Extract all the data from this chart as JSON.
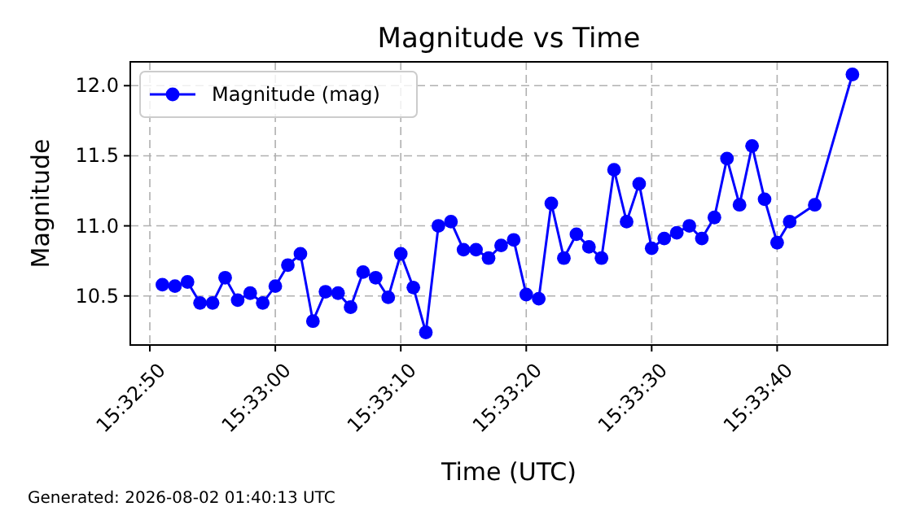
{
  "chart_data": {
    "type": "line",
    "title": "Magnitude vs Time",
    "xlabel": "Time (UTC)",
    "ylabel": "Magnitude",
    "annotations": [
      "Generated: 2026-08-02 01:40:13 UTC"
    ],
    "x": [
      15.5475,
      15.547778,
      15.548056,
      15.548333,
      15.548611,
      15.548889,
      15.549167,
      15.549444,
      15.549722,
      15.55,
      15.550278,
      15.550556,
      15.550833,
      15.551111,
      15.551389,
      15.551667,
      15.551944,
      15.552222,
      15.5525,
      15.552778,
      15.553056,
      15.553333,
      15.553611,
      15.553889,
      15.554167,
      15.554444,
      15.554722,
      15.555,
      15.555278,
      15.555556,
      15.555833,
      15.556111,
      15.556389,
      15.556667,
      15.556944,
      15.557222,
      15.5575,
      15.557778,
      15.558056,
      15.558333,
      15.558611,
      15.558889,
      15.559167,
      15.559444,
      15.559722,
      15.56,
      15.560278,
      15.560556,
      15.560833,
      15.561111,
      15.561389,
      15.561944,
      15.562778
    ],
    "series": [
      {
        "name": "Magnitude (mag)",
        "color": "#0000ff",
        "values": [
          10.58,
          10.57,
          10.6,
          10.45,
          10.45,
          10.63,
          10.47,
          10.52,
          10.45,
          10.57,
          10.72,
          10.8,
          10.32,
          10.53,
          10.52,
          10.42,
          10.67,
          10.63,
          10.49,
          10.8,
          10.56,
          10.24,
          11.0,
          11.03,
          10.83,
          10.83,
          10.77,
          10.86,
          10.9,
          10.51,
          10.48,
          11.16,
          10.77,
          10.94,
          10.85,
          10.77,
          11.4,
          11.03,
          11.3,
          10.84,
          10.91,
          10.95,
          11.0,
          10.91,
          11.06,
          11.48,
          11.15,
          11.57,
          11.19,
          10.88,
          11.03,
          11.15,
          12.08
        ]
      }
    ],
    "xlim": [
      15.546789,
      15.563556
    ],
    "xticks": [
      {
        "value": 15.547222,
        "label": "15:32:50"
      },
      {
        "value": 15.55,
        "label": "15:33:00"
      },
      {
        "value": 15.552778,
        "label": "15:33:10"
      },
      {
        "value": 15.555556,
        "label": "15:33:20"
      },
      {
        "value": 15.558333,
        "label": "15:33:30"
      },
      {
        "value": 15.561111,
        "label": "15:33:40"
      }
    ],
    "ylim": [
      10.15,
      12.17
    ],
    "yticks": [
      {
        "value": 10.5,
        "label": "10.5"
      },
      {
        "value": 11.0,
        "label": "11.0"
      },
      {
        "value": 11.5,
        "label": "11.5"
      },
      {
        "value": 12.0,
        "label": "12.0"
      }
    ],
    "grid": true,
    "legend": "top left",
    "marker": "circle",
    "line_style": "solid"
  }
}
